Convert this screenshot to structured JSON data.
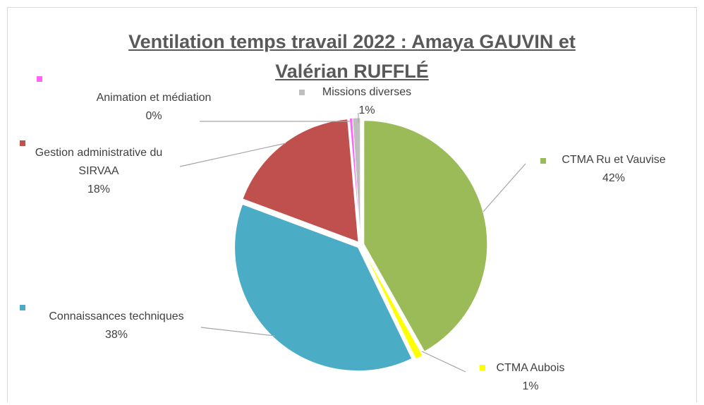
{
  "chart_data": {
    "type": "pie",
    "title": "Ventilation temps travail 2022 : Amaya GAUVIN et Valérian RUFFLÉ",
    "categories": [
      "CTMA Ru et Vauvise",
      "CTMA Aubois",
      "Connaissances techniques",
      "Gestion administrative du SIRVAA",
      "Animation et médiation",
      "Missions diverses"
    ],
    "values": [
      42,
      1,
      38,
      18,
      0.4,
      1
    ],
    "value_labels": [
      "42%",
      "1%",
      "38%",
      "18%",
      "0%",
      "1%"
    ],
    "colors": [
      "#9bbb59",
      "#ffff00",
      "#4bacc6",
      "#c0504d",
      "#ff66ff",
      "#bfbfbf"
    ]
  }
}
